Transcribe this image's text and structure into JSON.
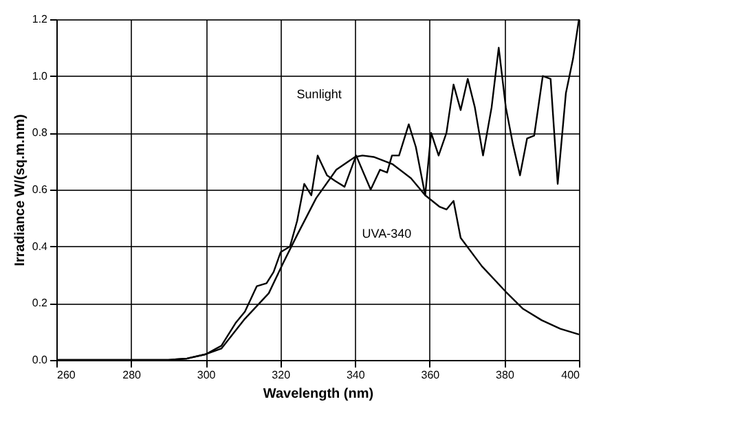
{
  "chart_data": {
    "type": "line",
    "xlabel": "Wavelength (nm)",
    "ylabel": "Irradiance W/(sq.m.nm)",
    "xlim": [
      260,
      400
    ],
    "xticks": [
      260,
      280,
      300,
      320,
      340,
      360,
      380,
      400
    ],
    "ylim": [
      0,
      1.2
    ],
    "yticks": [
      {
        "value": 0,
        "label": "0.0"
      },
      0.2,
      0.4,
      0.6,
      0.8,
      {
        "value": 1,
        "label": "1.0"
      },
      1.2
    ],
    "grid": true,
    "marker": "none",
    "line_style": "solid",
    "series": [
      {
        "color": "#000000",
        "x": [
          260,
          290,
          295,
          300,
          304.2,
          308,
          310.5,
          313.7,
          316.3,
          318.2,
          320.1,
          322.6,
          324.5,
          326.4,
          328.3,
          330,
          332.5,
          334.7,
          337.2,
          340.3,
          344.2,
          346.7,
          348.6,
          349.9,
          351.8,
          354.4,
          356.3,
          358.8,
          360.4,
          362.4,
          364.5,
          366.4,
          368.3,
          370.2,
          372.1,
          374.3,
          376.6,
          378.5,
          380.4,
          382.3,
          384.2,
          386.1,
          388,
          390.3,
          392.4,
          394.3,
          396.5,
          398.4,
          400
        ],
        "values": [
          0,
          0,
          0.005,
          0.02,
          0.05,
          0.13,
          0.17,
          0.26,
          0.27,
          0.31,
          0.38,
          0.4,
          0.49,
          0.62,
          0.58,
          0.72,
          0.65,
          0.63,
          0.61,
          0.72,
          0.6,
          0.67,
          0.66,
          0.72,
          0.72,
          0.83,
          0.75,
          0.58,
          0.8,
          0.72,
          0.8,
          0.97,
          0.88,
          0.99,
          0.89,
          0.72,
          0.89,
          1.1,
          0.89,
          0.76,
          0.65,
          0.78,
          0.79,
          1.0,
          0.99,
          0.62,
          0.94,
          1.06,
          1.2
        ]
      },
      {
        "color": "#000000",
        "x": [
          260,
          290,
          295,
          300,
          304.2,
          310.5,
          316.9,
          320.7,
          324.5,
          329.6,
          335,
          340,
          342,
          345,
          350,
          355,
          358.8,
          362.6,
          364.5,
          366.4,
          368.3,
          374,
          380.4,
          385,
          390,
          395,
          400
        ],
        "values": [
          0,
          0,
          0.005,
          0.02,
          0.04,
          0.145,
          0.235,
          0.34,
          0.44,
          0.57,
          0.67,
          0.715,
          0.72,
          0.715,
          0.69,
          0.64,
          0.58,
          0.54,
          0.53,
          0.56,
          0.43,
          0.33,
          0.24,
          0.18,
          0.14,
          0.11,
          0.09
        ]
      }
    ],
    "annotations": [
      "Sunlight",
      "UVA-340"
    ]
  }
}
